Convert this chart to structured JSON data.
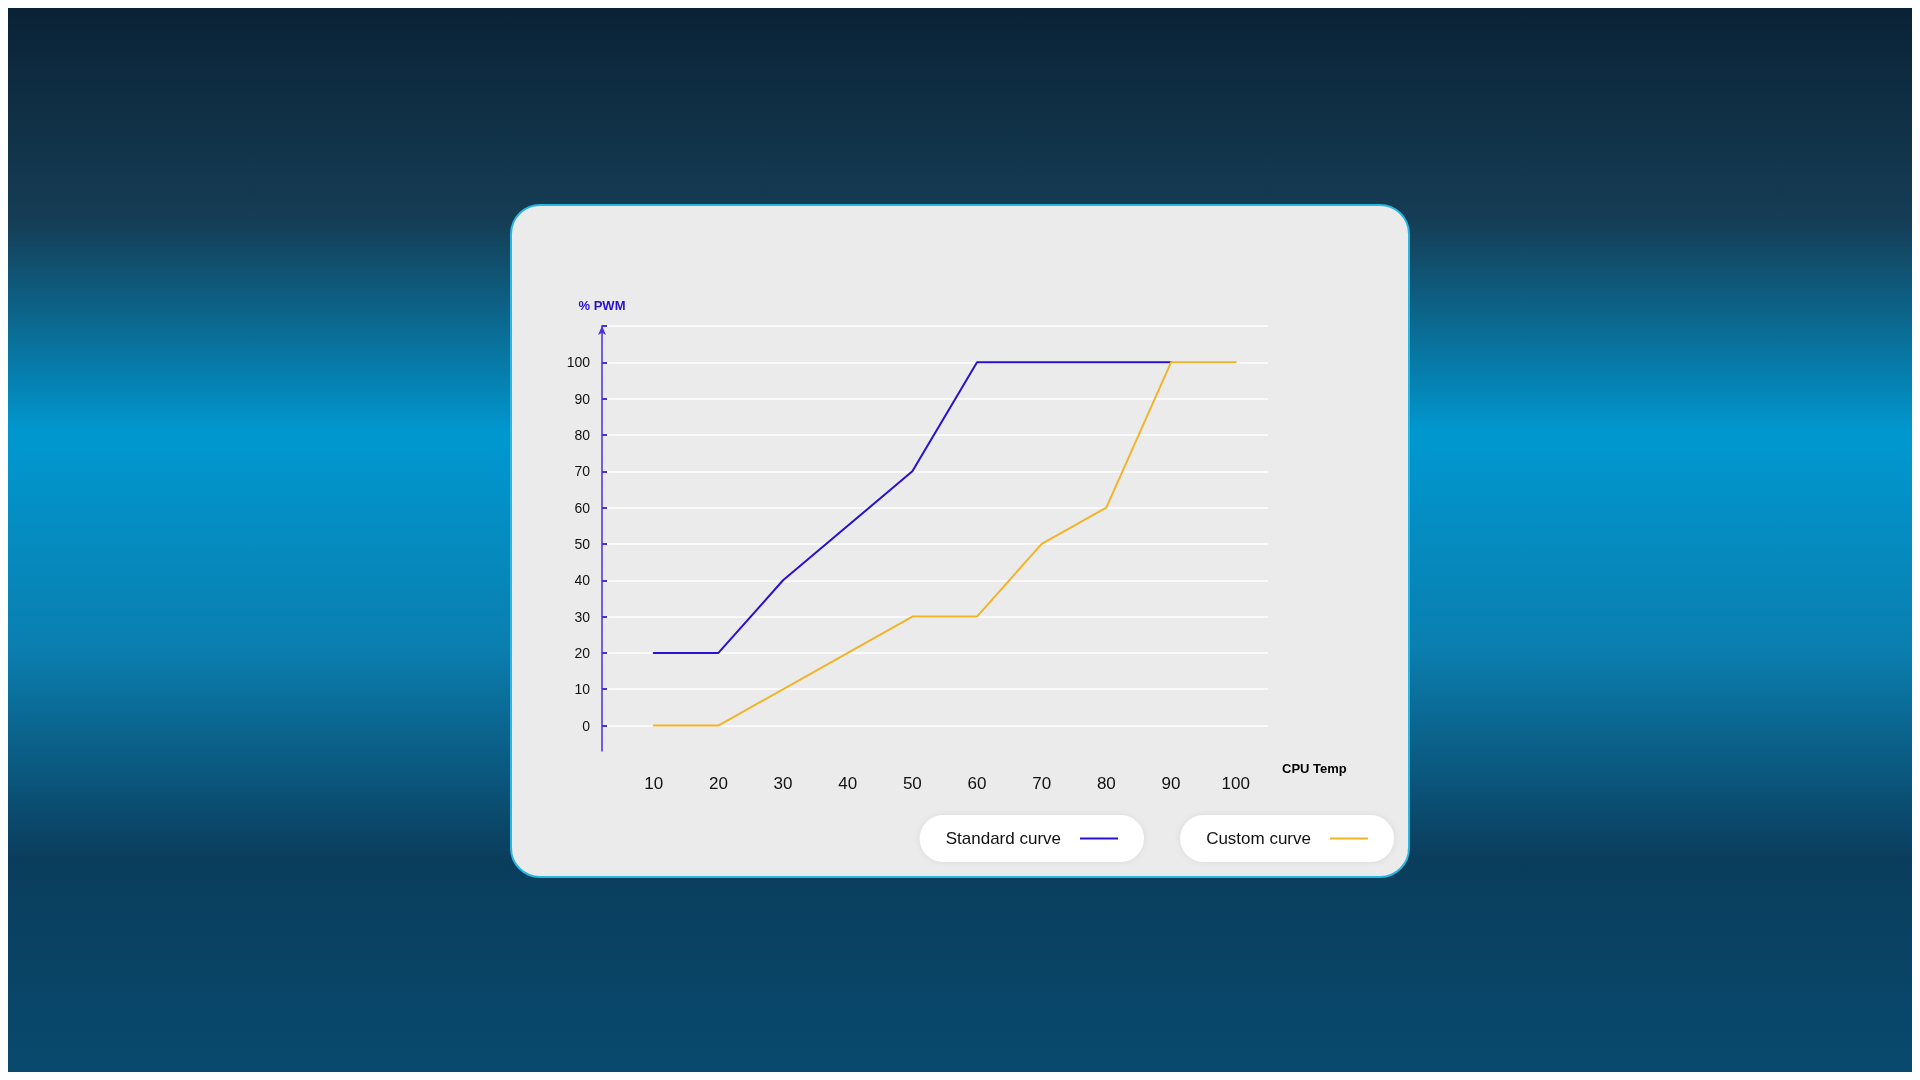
{
  "chart_data": {
    "type": "line",
    "xlabel": "CPU Temp",
    "ylabel": "% PWM",
    "xlim": [
      2,
      105
    ],
    "xticks": [
      10,
      20,
      30,
      40,
      50,
      60,
      70,
      80,
      90,
      100
    ],
    "ylim": [
      -7,
      110
    ],
    "yticks": [
      0,
      10,
      20,
      30,
      40,
      50,
      60,
      70,
      80,
      90,
      100,
      {
        "value": 110,
        "label": null
      }
    ],
    "grid": "y",
    "legend": "bottom right",
    "marker": "none",
    "line_style": "solid",
    "series": [
      {
        "name": "Standard curve",
        "color": "#2a10d0",
        "x": [
          10,
          20,
          30,
          50,
          60,
          90
        ],
        "values": [
          20,
          20,
          40,
          70,
          100,
          100
        ]
      },
      {
        "name": "Custom curve",
        "color": "#f0b429",
        "x": [
          10,
          20,
          50,
          60,
          70,
          80,
          90,
          100
        ],
        "values": [
          0,
          0,
          30,
          30,
          50,
          60,
          100,
          100
        ]
      }
    ]
  }
}
